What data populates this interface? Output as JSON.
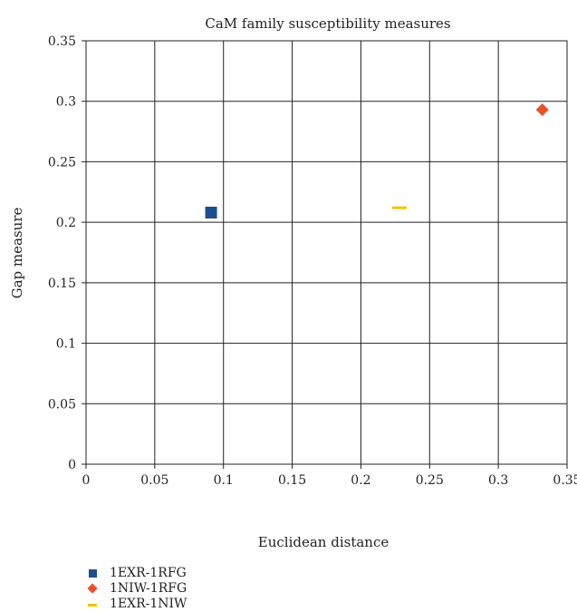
{
  "chart_data": {
    "type": "scatter",
    "title": "CaM family susceptibility measures",
    "xlabel": "Euclidean distance",
    "ylabel": "Gap measure",
    "xlim": [
      0,
      0.35
    ],
    "ylim": [
      0,
      0.35
    ],
    "x_ticks": [
      "0",
      "0.05",
      "0.1",
      "0.15",
      "0.2",
      "0.25",
      "0.3",
      "0.35"
    ],
    "y_ticks": [
      "0",
      "0.05",
      "0.1",
      "0.15",
      "0.2",
      "0.25",
      "0.3",
      "0.35"
    ],
    "grid": true,
    "legend_position": "bottom-left",
    "series": [
      {
        "name": "1EXR-1RFG",
        "marker": "square",
        "color": "#1f4e8c",
        "points": [
          {
            "x": 0.091,
            "y": 0.208
          }
        ]
      },
      {
        "name": "1NIW-1RFG",
        "marker": "diamond",
        "color": "#e8502a",
        "points": [
          {
            "x": 0.332,
            "y": 0.293
          }
        ]
      },
      {
        "name": "1EXR-1NIW",
        "marker": "dash",
        "color": "#f2c500",
        "points": [
          {
            "x": 0.228,
            "y": 0.212
          }
        ]
      }
    ]
  }
}
